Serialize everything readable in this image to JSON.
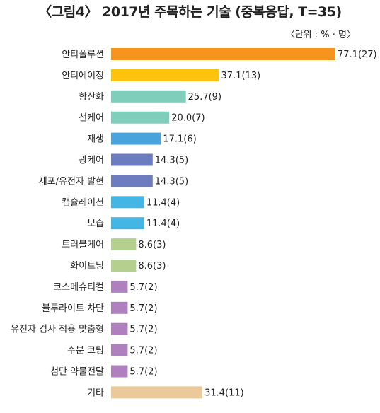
{
  "chart_data": {
    "type": "bar",
    "orientation": "horizontal",
    "title": "〈그림4〉 2017년 주목하는 기술 (중복응답, T=35)",
    "unit": "〈단위 : % · 명〉",
    "grid": false,
    "categories": [
      "안티폴루션",
      "안티에이징",
      "항산화",
      "선케어",
      "재생",
      "광케어",
      "세포/유전자 발현",
      "캡슐레이션",
      "보습",
      "트러블케어",
      "화이트닝",
      "코스메슈티컬",
      "블루라이트 차단",
      "유전자 검사 적용 맞춤형",
      "수분 코팅",
      "첨단 약물전달",
      "기타"
    ],
    "values": [
      77.1,
      37.1,
      25.7,
      20.0,
      17.1,
      14.3,
      14.3,
      11.4,
      11.4,
      8.6,
      8.6,
      5.7,
      5.7,
      5.7,
      5.7,
      5.7,
      31.4
    ],
    "counts": [
      27,
      13,
      9,
      7,
      6,
      5,
      5,
      4,
      4,
      3,
      3,
      2,
      2,
      2,
      2,
      2,
      11
    ],
    "value_labels": [
      "77.1(27)",
      "37.1(13)",
      "25.7(9)",
      "20.0(7)",
      "17.1(6)",
      "14.3(5)",
      "14.3(5)",
      "11.4(4)",
      "11.4(4)",
      "8.6(3)",
      "8.6(3)",
      "5.7(2)",
      "5.7(2)",
      "5.7(2)",
      "5.7(2)",
      "5.7(2)",
      "31.4(11)"
    ],
    "colors": [
      "#f7941d",
      "#ffc20e",
      "#7fcdbb",
      "#7fcdbb",
      "#4ba3dd",
      "#6b7cc1",
      "#6b7cc1",
      "#44b6e6",
      "#44b6e6",
      "#b5d08e",
      "#b5d08e",
      "#b07fbd",
      "#b07fbd",
      "#b07fbd",
      "#b07fbd",
      "#b07fbd",
      "#ecc99a"
    ]
  }
}
